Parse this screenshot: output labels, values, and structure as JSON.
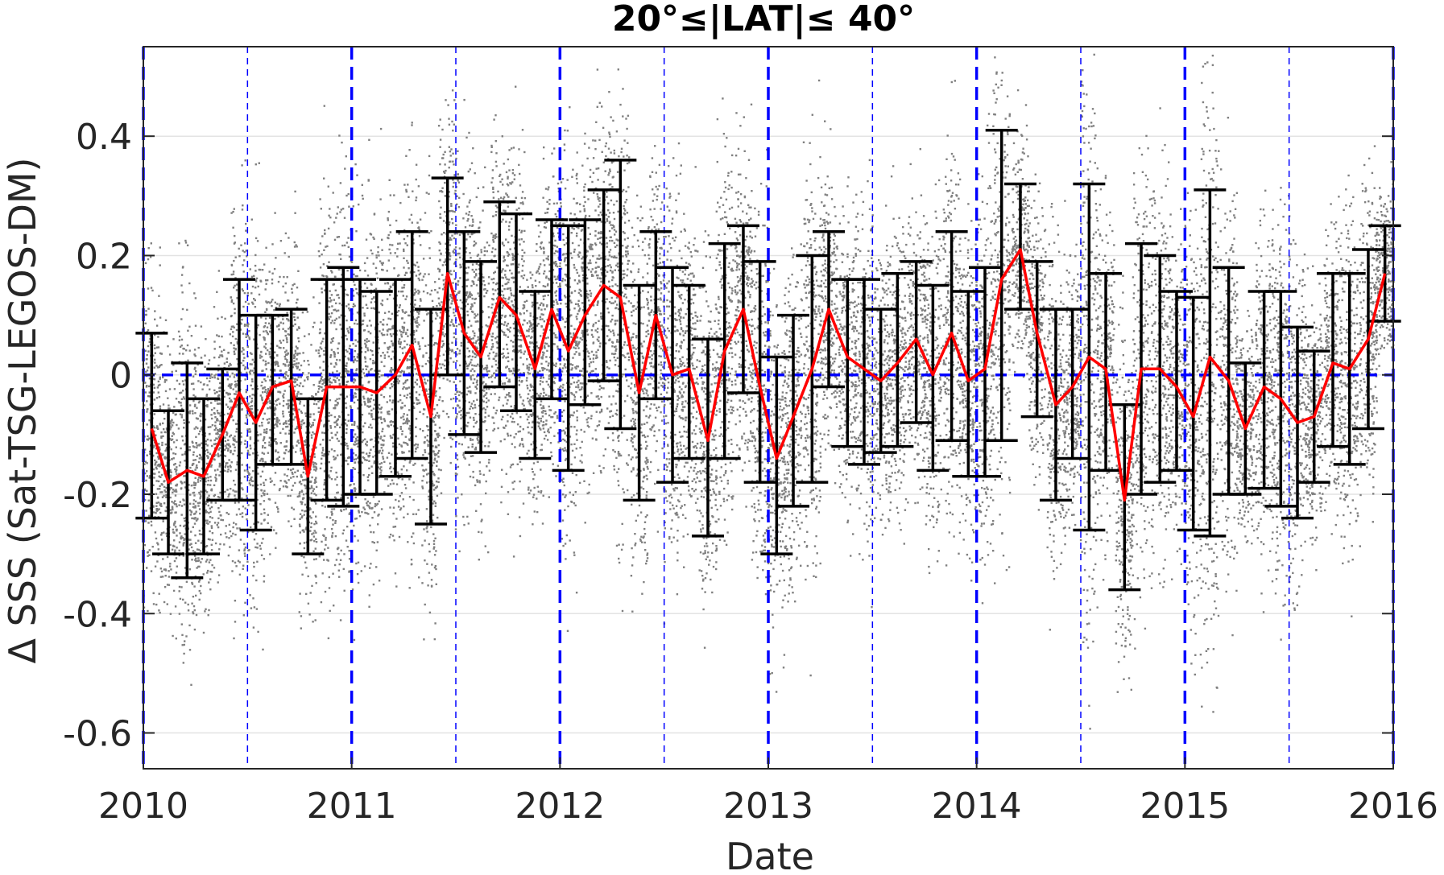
{
  "chart_data": {
    "type": "scatter",
    "title": "20°≤|LAT|≤ 40°",
    "xlabel": "Date",
    "ylabel": "Δ SSS (Sat-TSG-LEGOS-DM)",
    "x_ticks": [
      "2010",
      "2011",
      "2012",
      "2013",
      "2014",
      "2015",
      "2016"
    ],
    "y_ticks": [
      "0.4",
      "0.2",
      "0",
      "-0.2",
      "-0.4",
      "-0.6"
    ],
    "y_tick_values": [
      0.4,
      0.2,
      0,
      -0.2,
      -0.4,
      -0.6
    ],
    "xlim": [
      2010.0,
      2016.0
    ],
    "ylim": [
      -0.66,
      0.55
    ],
    "grid": true,
    "colors": {
      "scatter": "#808080",
      "mean_line": "#ff0000",
      "error_bars": "#000000",
      "reference_lines": "#0000ff"
    },
    "series": [
      {
        "type": "line",
        "x": [
          2010.04,
          2010.12,
          2010.21,
          2010.29,
          2010.38,
          2010.46,
          2010.54,
          2010.62,
          2010.71,
          2010.79,
          2010.88,
          2010.96,
          2011.04,
          2011.12,
          2011.21,
          2011.29,
          2011.38,
          2011.46,
          2011.54,
          2011.62,
          2011.71,
          2011.79,
          2011.88,
          2011.96,
          2012.04,
          2012.12,
          2012.21,
          2012.29,
          2012.38,
          2012.46,
          2012.54,
          2012.62,
          2012.71,
          2012.79,
          2012.88,
          2012.96,
          2013.04,
          2013.12,
          2013.21,
          2013.29,
          2013.38,
          2013.46,
          2013.54,
          2013.62,
          2013.71,
          2013.79,
          2013.88,
          2013.96,
          2014.04,
          2014.12,
          2014.21,
          2014.29,
          2014.38,
          2014.46,
          2014.54,
          2014.62,
          2014.71,
          2014.79,
          2014.88,
          2014.96,
          2015.04,
          2015.12,
          2015.21,
          2015.29,
          2015.38,
          2015.46,
          2015.54,
          2015.62,
          2015.71,
          2015.79,
          2015.88,
          2015.96
        ],
        "mean": [
          -0.09,
          -0.18,
          -0.16,
          -0.17,
          -0.1,
          -0.03,
          -0.08,
          -0.02,
          -0.01,
          -0.17,
          -0.02,
          -0.02,
          -0.02,
          -0.03,
          0.0,
          0.05,
          -0.07,
          0.17,
          0.07,
          0.03,
          0.13,
          0.1,
          0.01,
          0.11,
          0.04,
          0.1,
          0.15,
          0.13,
          -0.03,
          0.1,
          0.0,
          0.01,
          -0.11,
          0.04,
          0.11,
          -0.02,
          -0.14,
          -0.07,
          0.01,
          0.11,
          0.03,
          0.01,
          -0.01,
          0.02,
          0.06,
          0.0,
          0.07,
          -0.01,
          0.01,
          0.16,
          0.21,
          0.07,
          -0.05,
          -0.02,
          0.03,
          0.01,
          -0.21,
          0.01,
          0.01,
          -0.02,
          -0.07,
          0.03,
          -0.01,
          -0.09,
          -0.02,
          -0.04,
          -0.08,
          -0.07,
          0.02,
          0.01,
          0.06,
          0.17
        ],
        "err_low": [
          -0.24,
          -0.3,
          -0.34,
          -0.3,
          -0.21,
          -0.21,
          -0.26,
          -0.15,
          -0.15,
          -0.3,
          -0.21,
          -0.22,
          -0.2,
          -0.2,
          -0.17,
          -0.14,
          -0.25,
          0.0,
          -0.1,
          -0.13,
          -0.02,
          -0.06,
          -0.14,
          -0.04,
          -0.16,
          -0.05,
          -0.01,
          -0.09,
          -0.21,
          -0.04,
          -0.18,
          -0.14,
          -0.27,
          -0.14,
          -0.03,
          -0.18,
          -0.3,
          -0.22,
          -0.18,
          -0.02,
          -0.12,
          -0.15,
          -0.13,
          -0.12,
          -0.08,
          -0.16,
          -0.11,
          -0.17,
          -0.17,
          -0.11,
          0.11,
          -0.07,
          -0.21,
          -0.14,
          -0.26,
          -0.16,
          -0.36,
          -0.2,
          -0.18,
          -0.16,
          -0.26,
          -0.27,
          -0.2,
          -0.2,
          -0.19,
          -0.22,
          -0.24,
          -0.18,
          -0.12,
          -0.15,
          -0.09,
          0.09
        ],
        "err_high": [
          0.07,
          -0.06,
          0.02,
          -0.04,
          0.01,
          0.16,
          0.1,
          0.1,
          0.11,
          -0.04,
          0.16,
          0.18,
          0.16,
          0.14,
          0.16,
          0.24,
          0.11,
          0.33,
          0.24,
          0.19,
          0.29,
          0.27,
          0.14,
          0.26,
          0.25,
          0.26,
          0.31,
          0.36,
          0.15,
          0.24,
          0.18,
          0.15,
          0.06,
          0.22,
          0.25,
          0.19,
          0.03,
          0.1,
          0.2,
          0.24,
          0.16,
          0.16,
          0.11,
          0.17,
          0.19,
          0.15,
          0.24,
          0.14,
          0.18,
          0.41,
          0.32,
          0.19,
          0.11,
          0.11,
          0.32,
          0.17,
          -0.05,
          0.22,
          0.2,
          0.14,
          0.13,
          0.31,
          0.18,
          0.02,
          0.14,
          0.14,
          0.08,
          0.04,
          0.17,
          0.17,
          0.21,
          0.25
        ]
      }
    ],
    "reference_lines": {
      "horizontal": [
        0
      ],
      "vertical_thick": [
        2010,
        2011,
        2012,
        2013,
        2014,
        2015,
        2016
      ],
      "vertical_thin": [
        2010.5,
        2011.5,
        2012.5,
        2013.5,
        2014.5,
        2015.5
      ]
    }
  }
}
